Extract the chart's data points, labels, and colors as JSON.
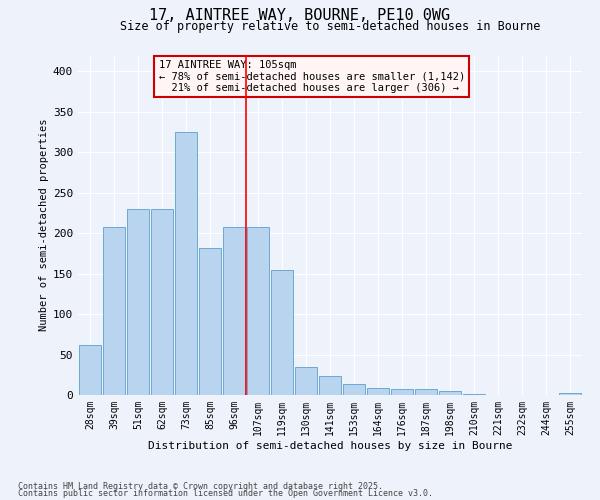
{
  "title": "17, AINTREE WAY, BOURNE, PE10 0WG",
  "subtitle": "Size of property relative to semi-detached houses in Bourne",
  "xlabel": "Distribution of semi-detached houses by size in Bourne",
  "ylabel": "Number of semi-detached properties",
  "categories": [
    "28sqm",
    "39sqm",
    "51sqm",
    "62sqm",
    "73sqm",
    "85sqm",
    "96sqm",
    "107sqm",
    "119sqm",
    "130sqm",
    "141sqm",
    "153sqm",
    "164sqm",
    "176sqm",
    "187sqm",
    "198sqm",
    "210sqm",
    "221sqm",
    "232sqm",
    "244sqm",
    "255sqm"
  ],
  "values": [
    62,
    208,
    230,
    230,
    325,
    182,
    208,
    208,
    155,
    34,
    23,
    13,
    9,
    8,
    8,
    5,
    1,
    0,
    0,
    0,
    3
  ],
  "bar_color": "#b8d4ee",
  "bar_edge_color": "#6aaad4",
  "property_sqm": 105,
  "pct_smaller": 78,
  "count_smaller": 1142,
  "pct_larger": 21,
  "count_larger": 306,
  "ylim": [
    0,
    420
  ],
  "yticks": [
    0,
    50,
    100,
    150,
    200,
    250,
    300,
    350,
    400
  ],
  "background_color": "#eef2fb",
  "plot_bg_color": "#eef2fb",
  "grid_color": "#ffffff",
  "footer_line1": "Contains HM Land Registry data © Crown copyright and database right 2025.",
  "footer_line2": "Contains public sector information licensed under the Open Government Licence v3.0."
}
